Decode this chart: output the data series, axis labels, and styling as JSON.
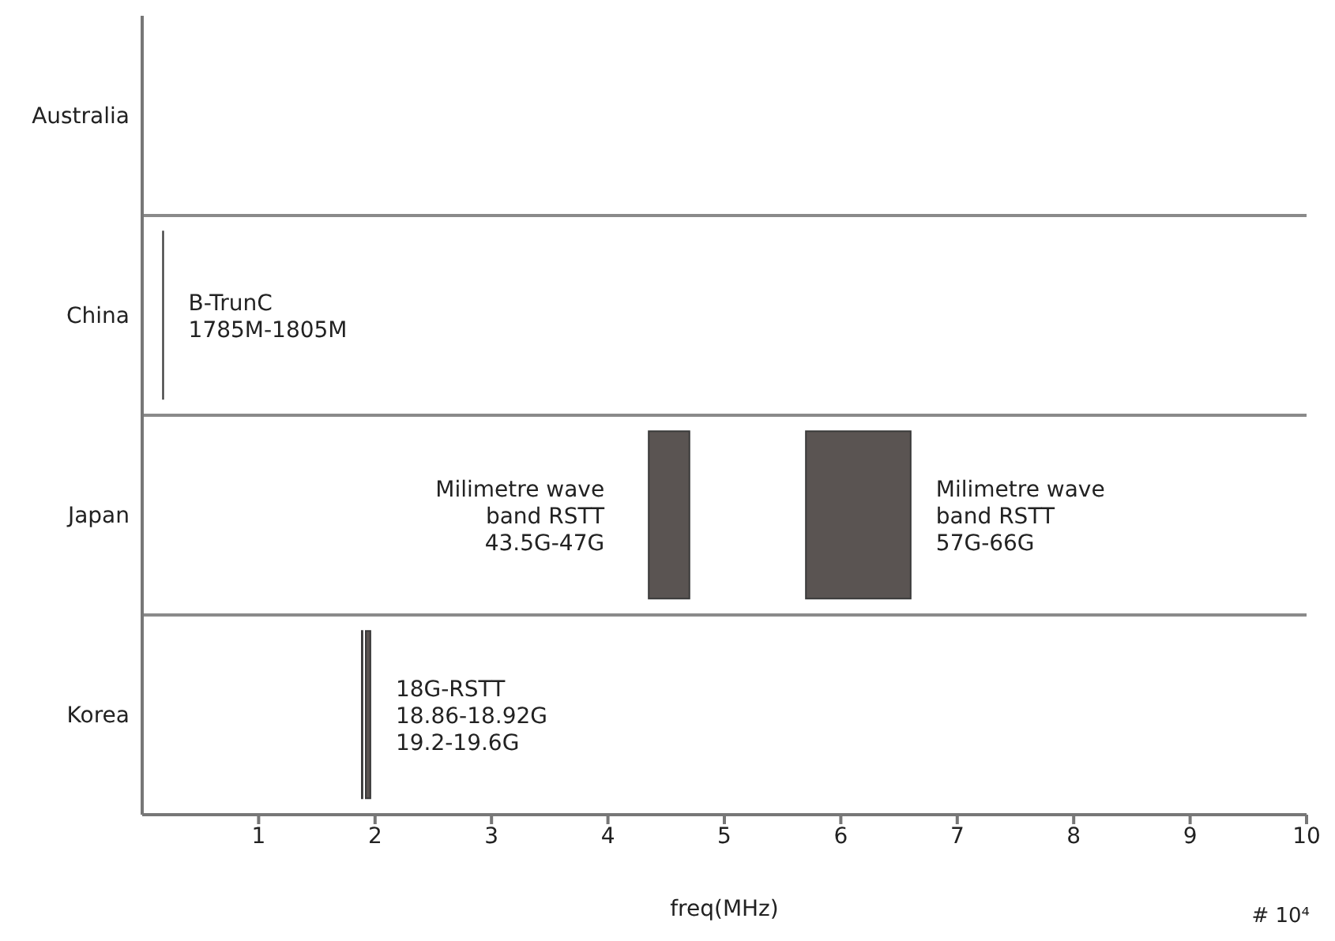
{
  "chart_data": {
    "type": "bar",
    "orientation": "horizontal",
    "categories": [
      "Australia",
      "China",
      "Japan",
      "Korea"
    ],
    "series": [
      {
        "color": "#5a5452",
        "base": [
          null,
          0.1785,
          4.35,
          1.886
        ],
        "values": [
          null,
          0.002,
          0.35,
          0.006
        ]
      },
      {
        "color": "#5a5452",
        "base": [
          null,
          null,
          5.7,
          1.92
        ],
        "values": [
          null,
          null,
          0.9,
          0.04
        ]
      }
    ],
    "xlim": [
      0,
      10
    ],
    "xticks": [
      1,
      2,
      3,
      4,
      5,
      6,
      7,
      8,
      9,
      10
    ],
    "xlabel": "freq(MHz)",
    "grid": "y",
    "legend": false,
    "annotations": [
      {
        "text": "B-TrunC\n1785M-1805M",
        "x": 0.1805,
        "y": "China"
      },
      {
        "text": "Milimetre wave\nband RSTT\n43.5G-47G",
        "x": 4.35,
        "y": "Japan"
      },
      {
        "text": "Milimetre wave\nband RSTT\n57G-66G",
        "x": 6.6,
        "y": "Japan"
      },
      {
        "text": "18G-RSTT\n18.86-18.92G\n19.2-19.6G",
        "x": 1.96,
        "y": "Korea"
      },
      "# 10⁴"
    ]
  }
}
